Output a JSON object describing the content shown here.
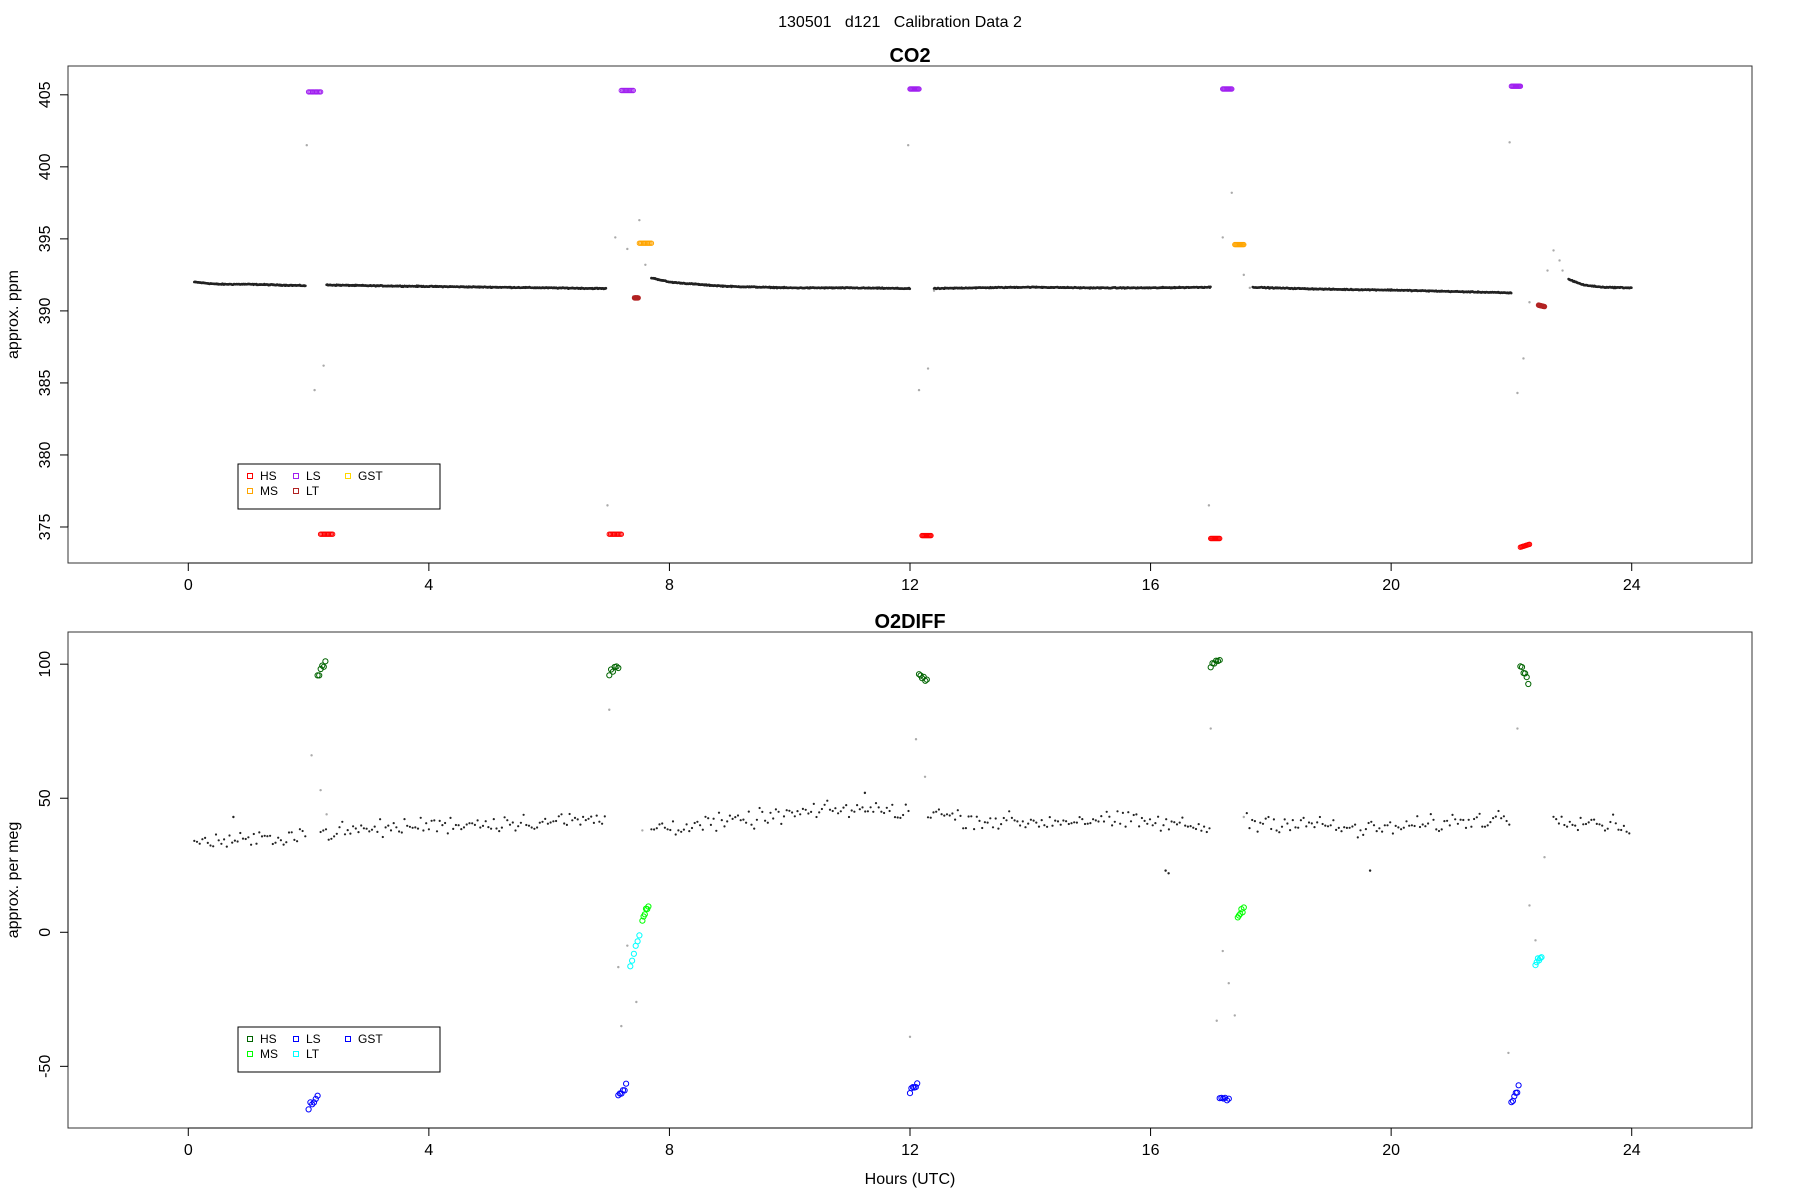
{
  "figure": {
    "suptitle": "130501   d121   Calibration Data 2"
  },
  "chart_data": [
    {
      "type": "scatter",
      "title": "CO2",
      "xlabel": "",
      "ylabel": "approx. ppm",
      "xlim": [
        -2,
        26
      ],
      "ylim": [
        372.5,
        407
      ],
      "xticks": [
        0,
        4,
        8,
        12,
        16,
        20,
        24
      ],
      "xtick_labels": [
        "0",
        "4",
        "8",
        "12",
        "16",
        "20",
        "24"
      ],
      "yticks": [
        375,
        380,
        385,
        390,
        395,
        400,
        405
      ],
      "ytick_labels": [
        "375",
        "380",
        "385",
        "390",
        "395",
        "400",
        "405"
      ],
      "grid": false,
      "legend": {
        "placement": "bottom-left",
        "columns": 3,
        "entries": [
          {
            "label": "HS",
            "color": "#ff0000"
          },
          {
            "label": "MS",
            "color": "#ffa500"
          },
          {
            "label": "LS",
            "color": "#a020f0"
          },
          {
            "label": "LT",
            "color": "#b22222"
          },
          {
            "label": "GST",
            "color": "#ffd700"
          }
        ]
      },
      "baseline_segments": [
        {
          "x": [
            0.1,
            0.5,
            1.0,
            1.5,
            1.95
          ],
          "y": [
            392.0,
            391.85,
            391.85,
            391.8,
            391.75
          ]
        },
        {
          "x": [
            2.3,
            3.0,
            4.0,
            5.0,
            6.0,
            6.95
          ],
          "y": [
            391.8,
            391.75,
            391.7,
            391.65,
            391.6,
            391.55
          ]
        },
        {
          "x": [
            7.7,
            8.0,
            8.6,
            9.0,
            10.0,
            11.0,
            12.0
          ],
          "y": [
            392.3,
            392.0,
            391.8,
            391.7,
            391.6,
            391.6,
            391.55
          ]
        },
        {
          "x": [
            12.4,
            13.0,
            14.0,
            15.0,
            16.0,
            17.0
          ],
          "y": [
            391.55,
            391.6,
            391.65,
            391.6,
            391.6,
            391.65
          ]
        },
        {
          "x": [
            17.7,
            18.0,
            19.0,
            20.0,
            21.0,
            22.0
          ],
          "y": [
            391.65,
            391.6,
            391.5,
            391.45,
            391.35,
            391.25
          ]
        },
        {
          "x": [
            22.95,
            23.2,
            23.5,
            24.0
          ],
          "y": [
            392.2,
            391.8,
            391.65,
            391.6
          ]
        }
      ],
      "transition_points": [
        {
          "x": 1.97,
          "y": 401.5
        },
        {
          "x": 2.1,
          "y": 384.5
        },
        {
          "x": 2.25,
          "y": 386.2
        },
        {
          "x": 6.97,
          "y": 376.5
        },
        {
          "x": 7.1,
          "y": 395.1
        },
        {
          "x": 7.3,
          "y": 394.3
        },
        {
          "x": 7.4,
          "y": 391.0
        },
        {
          "x": 7.5,
          "y": 396.3
        },
        {
          "x": 7.6,
          "y": 393.2
        },
        {
          "x": 11.97,
          "y": 401.5
        },
        {
          "x": 12.15,
          "y": 384.5
        },
        {
          "x": 12.3,
          "y": 386.0
        },
        {
          "x": 12.4,
          "y": 391.4
        },
        {
          "x": 16.97,
          "y": 376.5
        },
        {
          "x": 17.2,
          "y": 395.1
        },
        {
          "x": 17.35,
          "y": 398.2
        },
        {
          "x": 17.55,
          "y": 392.5
        },
        {
          "x": 17.65,
          "y": 391.6
        },
        {
          "x": 21.97,
          "y": 401.7
        },
        {
          "x": 22.1,
          "y": 384.3
        },
        {
          "x": 22.2,
          "y": 386.7
        },
        {
          "x": 22.3,
          "y": 390.6
        },
        {
          "x": 22.6,
          "y": 392.8
        },
        {
          "x": 22.7,
          "y": 394.2
        },
        {
          "x": 22.8,
          "y": 393.5
        },
        {
          "x": 22.85,
          "y": 392.8
        }
      ],
      "calibration_clusters": [
        {
          "label": "LS",
          "color": "#a020f0",
          "x": [
            2.0,
            2.2
          ],
          "y": [
            405.2,
            405.2
          ]
        },
        {
          "label": "HS",
          "color": "#ff0000",
          "x": [
            2.2,
            2.4
          ],
          "y": [
            374.5,
            374.5
          ]
        },
        {
          "label": "HS",
          "color": "#ff0000",
          "x": [
            7.0,
            7.2
          ],
          "y": [
            374.5,
            374.5
          ]
        },
        {
          "label": "LS",
          "color": "#a020f0",
          "x": [
            7.2,
            7.4
          ],
          "y": [
            405.3,
            405.3
          ]
        },
        {
          "label": "LT",
          "color": "#b22222",
          "x": [
            7.42,
            7.48
          ],
          "y": [
            390.9,
            390.9
          ]
        },
        {
          "label": "MS",
          "color": "#ffa500",
          "x": [
            7.5,
            7.7
          ],
          "y": [
            394.7,
            394.7
          ]
        },
        {
          "label": "LS",
          "color": "#a020f0",
          "x": [
            12.0,
            12.15
          ],
          "y": [
            405.4,
            405.4
          ]
        },
        {
          "label": "HS",
          "color": "#ff0000",
          "x": [
            12.2,
            12.35
          ],
          "y": [
            374.4,
            374.4
          ]
        },
        {
          "label": "HS",
          "color": "#ff0000",
          "x": [
            17.0,
            17.15
          ],
          "y": [
            374.2,
            374.2
          ]
        },
        {
          "label": "LS",
          "color": "#a020f0",
          "x": [
            17.2,
            17.35
          ],
          "y": [
            405.4,
            405.4
          ]
        },
        {
          "label": "MS",
          "color": "#ffa500",
          "x": [
            17.4,
            17.55
          ],
          "y": [
            394.6,
            394.6
          ]
        },
        {
          "label": "LS",
          "color": "#a020f0",
          "x": [
            22.0,
            22.15
          ],
          "y": [
            405.6,
            405.6
          ]
        },
        {
          "label": "HS",
          "color": "#ff0000",
          "x": [
            22.15,
            22.3
          ],
          "y": [
            373.6,
            373.8
          ]
        },
        {
          "label": "LT",
          "color": "#b22222",
          "x": [
            22.45,
            22.55
          ],
          "y": [
            390.4,
            390.3
          ]
        }
      ]
    },
    {
      "type": "scatter",
      "title": "O2DIFF",
      "xlabel": "Hours (UTC)",
      "ylabel": "approx. per meg",
      "xlim": [
        -2,
        26
      ],
      "ylim": [
        -73,
        112
      ],
      "xticks": [
        0,
        4,
        8,
        12,
        16,
        20,
        24
      ],
      "xtick_labels": [
        "0",
        "4",
        "8",
        "12",
        "16",
        "20",
        "24"
      ],
      "yticks": [
        -50,
        0,
        50,
        100
      ],
      "ytick_labels": [
        "-50",
        "0",
        "50",
        "100"
      ],
      "grid": false,
      "legend": {
        "placement": "bottom-left",
        "columns": 3,
        "entries": [
          {
            "label": "HS",
            "color": "#006400"
          },
          {
            "label": "MS",
            "color": "#00ff00"
          },
          {
            "label": "LS",
            "color": "#0000ff"
          },
          {
            "label": "LT",
            "color": "#00ffff"
          },
          {
            "label": "GST",
            "color": "#0000ff"
          }
        ]
      },
      "baseline_segments": [
        {
          "x": [
            0.1,
            1.0,
            1.95
          ],
          "y": [
            34,
            34,
            37
          ]
        },
        {
          "x": [
            2.2,
            4.0,
            6.95
          ],
          "y": [
            37,
            40,
            42
          ]
        },
        {
          "x": [
            7.7,
            9.0,
            10.0,
            11.0,
            12.0
          ],
          "y": [
            39,
            41,
            44,
            46,
            45
          ]
        },
        {
          "x": [
            12.3,
            13.0,
            14.0,
            15.0,
            16.0,
            17.0
          ],
          "y": [
            45,
            42,
            41,
            42,
            41,
            39
          ]
        },
        {
          "x": [
            17.6,
            18.5,
            19.5,
            21.0,
            22.0
          ],
          "y": [
            41,
            41,
            38,
            41,
            43
          ]
        },
        {
          "x": [
            22.7,
            23.5,
            24.0
          ],
          "y": [
            43,
            41,
            39
          ]
        }
      ],
      "outlier_points": [
        {
          "x": 16.25,
          "y": 23
        },
        {
          "x": 16.3,
          "y": 22
        },
        {
          "x": 19.65,
          "y": 23
        },
        {
          "x": 0.75,
          "y": 43
        },
        {
          "x": 11.25,
          "y": 52
        }
      ],
      "transition_points": [
        {
          "x": 2.05,
          "y": 66
        },
        {
          "x": 2.2,
          "y": 53
        },
        {
          "x": 2.3,
          "y": 44
        },
        {
          "x": 7.0,
          "y": 83
        },
        {
          "x": 7.15,
          "y": -13
        },
        {
          "x": 7.2,
          "y": -35
        },
        {
          "x": 7.3,
          "y": -5
        },
        {
          "x": 7.45,
          "y": -26
        },
        {
          "x": 7.55,
          "y": 38
        },
        {
          "x": 12.0,
          "y": -39
        },
        {
          "x": 12.1,
          "y": 72
        },
        {
          "x": 12.25,
          "y": 58
        },
        {
          "x": 17.0,
          "y": 76
        },
        {
          "x": 17.1,
          "y": -33
        },
        {
          "x": 17.2,
          "y": -7
        },
        {
          "x": 17.3,
          "y": -19
        },
        {
          "x": 17.4,
          "y": -31
        },
        {
          "x": 17.55,
          "y": 43
        },
        {
          "x": 21.95,
          "y": -45
        },
        {
          "x": 22.1,
          "y": 76
        },
        {
          "x": 22.3,
          "y": 10
        },
        {
          "x": 22.4,
          "y": -3
        },
        {
          "x": 22.55,
          "y": 28
        }
      ],
      "calibration_clusters": [
        {
          "label": "GST",
          "color": "#0000ff",
          "x": [
            2.0,
            2.15
          ],
          "y": [
            -65,
            -62
          ]
        },
        {
          "label": "HS",
          "color": "#006400",
          "x": [
            2.15,
            2.28
          ],
          "y": [
            96,
            101
          ]
        },
        {
          "label": "HS",
          "color": "#006400",
          "x": [
            7.0,
            7.15
          ],
          "y": [
            97,
            99
          ]
        },
        {
          "label": "GST",
          "color": "#0000ff",
          "x": [
            7.15,
            7.28
          ],
          "y": [
            -61,
            -58
          ]
        },
        {
          "label": "LT",
          "color": "#00ffff",
          "x": [
            7.35,
            7.5
          ],
          "y": [
            -12,
            -2
          ]
        },
        {
          "label": "MS",
          "color": "#00ff00",
          "x": [
            7.55,
            7.65
          ],
          "y": [
            5,
            10
          ]
        },
        {
          "label": "GST",
          "color": "#0000ff",
          "x": [
            12.0,
            12.12
          ],
          "y": [
            -60,
            -56
          ]
        },
        {
          "label": "HS",
          "color": "#006400",
          "x": [
            12.15,
            12.28
          ],
          "y": [
            97,
            94
          ]
        },
        {
          "label": "HS",
          "color": "#006400",
          "x": [
            17.0,
            17.15
          ],
          "y": [
            99,
            102
          ]
        },
        {
          "label": "GST",
          "color": "#0000ff",
          "x": [
            17.15,
            17.3
          ],
          "y": [
            -61,
            -62
          ]
        },
        {
          "label": "MS",
          "color": "#00ff00",
          "x": [
            17.45,
            17.55
          ],
          "y": [
            6,
            9
          ]
        },
        {
          "label": "GST",
          "color": "#0000ff",
          "x": [
            22.0,
            22.12
          ],
          "y": [
            -63,
            -58
          ]
        },
        {
          "label": "HS",
          "color": "#006400",
          "x": [
            22.15,
            22.28
          ],
          "y": [
            100,
            93
          ]
        },
        {
          "label": "LT",
          "color": "#00ffff",
          "x": [
            22.4,
            22.5
          ],
          "y": [
            -11,
            -9
          ]
        }
      ]
    }
  ]
}
